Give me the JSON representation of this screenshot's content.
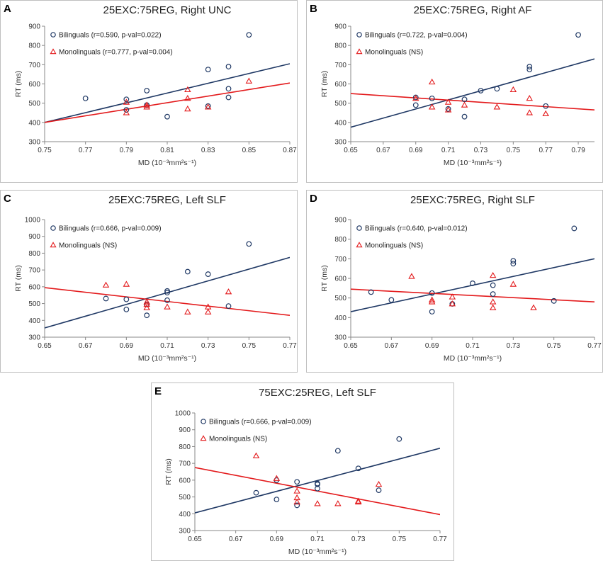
{
  "colors": {
    "bilingual": "#1f3864",
    "monolingual": "#e31a1c",
    "frame": "#bfbfbf"
  },
  "chart_data": [
    {
      "letter": "A",
      "type": "scatter",
      "title": "25EXC:75REG, Right UNC",
      "xlabel": "MD (10⁻³mm²s⁻¹)",
      "ylabel": "RT (ms)",
      "xlim": [
        0.75,
        0.87
      ],
      "ylim": [
        300,
        900
      ],
      "xticks": [
        "0.75",
        "0.77",
        "0.79",
        "0.81",
        "0.83",
        "0.85",
        "0.87"
      ],
      "yticks": [
        "300",
        "400",
        "500",
        "600",
        "700",
        "800",
        "900"
      ],
      "legend": {
        "bilingual": "Bilinguals (r=0.590, p-val=0.022)",
        "monolingual": "Monolinguals (r=0.777, p-val=0.004)"
      },
      "bilinguals": [
        [
          0.77,
          525
        ],
        [
          0.79,
          520
        ],
        [
          0.79,
          465
        ],
        [
          0.8,
          565
        ],
        [
          0.8,
          490
        ],
        [
          0.81,
          430
        ],
        [
          0.83,
          675
        ],
        [
          0.83,
          485
        ],
        [
          0.84,
          690
        ],
        [
          0.84,
          575
        ],
        [
          0.84,
          530
        ],
        [
          0.85,
          855
        ]
      ],
      "monolinguals": [
        [
          0.79,
          505
        ],
        [
          0.79,
          450
        ],
        [
          0.8,
          490
        ],
        [
          0.8,
          480
        ],
        [
          0.82,
          570
        ],
        [
          0.82,
          525
        ],
        [
          0.82,
          470
        ],
        [
          0.83,
          480
        ],
        [
          0.85,
          615
        ]
      ],
      "bil_fit": [
        [
          0.75,
          400
        ],
        [
          0.87,
          705
        ]
      ],
      "mono_fit": [
        [
          0.75,
          400
        ],
        [
          0.87,
          605
        ]
      ]
    },
    {
      "letter": "B",
      "type": "scatter",
      "title": "25EXC:75REG, Right AF",
      "xlabel": "MD (10⁻³mm²s⁻¹)",
      "ylabel": "RT (ms)",
      "xlim": [
        0.65,
        0.8
      ],
      "ylim": [
        300,
        900
      ],
      "xticks": [
        "0.65",
        "0.67",
        "0.69",
        "0.71",
        "0.73",
        "0.75",
        "0.77",
        "0.79"
      ],
      "yticks": [
        "300",
        "400",
        "500",
        "600",
        "700",
        "800",
        "900"
      ],
      "legend": {
        "bilingual": "Bilinguals (r=0.722, p-val=0.004)",
        "monolingual": "Monolinguals (NS)"
      },
      "bilinguals": [
        [
          0.69,
          530
        ],
        [
          0.69,
          490
        ],
        [
          0.7,
          525
        ],
        [
          0.71,
          470
        ],
        [
          0.72,
          520
        ],
        [
          0.72,
          430
        ],
        [
          0.73,
          565
        ],
        [
          0.74,
          575
        ],
        [
          0.76,
          690
        ],
        [
          0.76,
          675
        ],
        [
          0.77,
          485
        ],
        [
          0.79,
          855
        ]
      ],
      "monolinguals": [
        [
          0.69,
          525
        ],
        [
          0.7,
          610
        ],
        [
          0.7,
          480
        ],
        [
          0.71,
          505
        ],
        [
          0.71,
          465
        ],
        [
          0.72,
          490
        ],
        [
          0.74,
          480
        ],
        [
          0.75,
          570
        ],
        [
          0.76,
          525
        ],
        [
          0.76,
          450
        ],
        [
          0.77,
          445
        ]
      ],
      "bil_fit": [
        [
          0.65,
          375
        ],
        [
          0.8,
          730
        ]
      ],
      "mono_fit": [
        [
          0.65,
          550
        ],
        [
          0.8,
          465
        ]
      ]
    },
    {
      "letter": "C",
      "type": "scatter",
      "title": "25EXC:75REG, Left SLF",
      "xlabel": "MD (10⁻³mm²s⁻¹)",
      "ylabel": "RT (ms)",
      "xlim": [
        0.65,
        0.77
      ],
      "ylim": [
        300,
        1000
      ],
      "xticks": [
        "0.65",
        "0.67",
        "0.69",
        "0.71",
        "0.73",
        "0.75",
        "0.77"
      ],
      "yticks": [
        "300",
        "400",
        "500",
        "600",
        "700",
        "800",
        "900",
        "1000"
      ],
      "legend": {
        "bilingual": "Bilinguals (r=0.666, p-val=0.009)",
        "monolingual": "Monolinguals (NS)"
      },
      "bilinguals": [
        [
          0.68,
          530
        ],
        [
          0.69,
          525
        ],
        [
          0.69,
          465
        ],
        [
          0.7,
          495
        ],
        [
          0.7,
          430
        ],
        [
          0.71,
          575
        ],
        [
          0.71,
          565
        ],
        [
          0.71,
          520
        ],
        [
          0.72,
          690
        ],
        [
          0.73,
          675
        ],
        [
          0.74,
          485
        ],
        [
          0.75,
          855
        ]
      ],
      "monolinguals": [
        [
          0.68,
          610
        ],
        [
          0.69,
          615
        ],
        [
          0.7,
          510
        ],
        [
          0.7,
          495
        ],
        [
          0.7,
          475
        ],
        [
          0.71,
          480
        ],
        [
          0.72,
          450
        ],
        [
          0.73,
          480
        ],
        [
          0.73,
          450
        ],
        [
          0.74,
          570
        ]
      ],
      "bil_fit": [
        [
          0.65,
          355
        ],
        [
          0.77,
          775
        ]
      ],
      "mono_fit": [
        [
          0.65,
          595
        ],
        [
          0.77,
          430
        ]
      ]
    },
    {
      "letter": "D",
      "type": "scatter",
      "title": "25EXC:75REG, Right SLF",
      "xlabel": "MD (10⁻³mm²s⁻¹)",
      "ylabel": "RT (ms)",
      "xlim": [
        0.65,
        0.77
      ],
      "ylim": [
        300,
        900
      ],
      "xticks": [
        "0.65",
        "0.67",
        "0.69",
        "0.71",
        "0.73",
        "0.75",
        "0.77"
      ],
      "yticks": [
        "300",
        "400",
        "500",
        "600",
        "700",
        "800",
        "900"
      ],
      "legend": {
        "bilingual": "Bilinguals (r=0.640, p-val=0.012)",
        "monolingual": "Monolinguals (NS)"
      },
      "bilinguals": [
        [
          0.66,
          530
        ],
        [
          0.67,
          490
        ],
        [
          0.69,
          525
        ],
        [
          0.69,
          430
        ],
        [
          0.7,
          470
        ],
        [
          0.71,
          575
        ],
        [
          0.72,
          565
        ],
        [
          0.72,
          520
        ],
        [
          0.73,
          690
        ],
        [
          0.73,
          675
        ],
        [
          0.75,
          485
        ],
        [
          0.76,
          855
        ]
      ],
      "monolinguals": [
        [
          0.68,
          610
        ],
        [
          0.69,
          490
        ],
        [
          0.69,
          480
        ],
        [
          0.7,
          505
        ],
        [
          0.7,
          470
        ],
        [
          0.72,
          615
        ],
        [
          0.72,
          480
        ],
        [
          0.72,
          450
        ],
        [
          0.73,
          570
        ],
        [
          0.74,
          450
        ]
      ],
      "bil_fit": [
        [
          0.65,
          430
        ],
        [
          0.77,
          700
        ]
      ],
      "mono_fit": [
        [
          0.65,
          545
        ],
        [
          0.77,
          480
        ]
      ]
    },
    {
      "letter": "E",
      "type": "scatter",
      "title": "75EXC:25REG, Left SLF",
      "xlabel": "MD (10⁻³mm²s⁻¹)",
      "ylabel": "RT (ms)",
      "xlim": [
        0.65,
        0.77
      ],
      "ylim": [
        300,
        1000
      ],
      "xticks": [
        "0.65",
        "0.67",
        "0.69",
        "0.71",
        "0.73",
        "0.75",
        "0.77"
      ],
      "yticks": [
        "300",
        "400",
        "500",
        "600",
        "700",
        "800",
        "900",
        "1000"
      ],
      "legend": {
        "bilingual": "Bilinguals (r=0.666, p-val=0.009)",
        "monolingual": "Monolinguals (NS)"
      },
      "bilinguals": [
        [
          0.68,
          525
        ],
        [
          0.69,
          600
        ],
        [
          0.69,
          485
        ],
        [
          0.7,
          590
        ],
        [
          0.7,
          450
        ],
        [
          0.71,
          580
        ],
        [
          0.71,
          575
        ],
        [
          0.71,
          550
        ],
        [
          0.72,
          775
        ],
        [
          0.73,
          670
        ],
        [
          0.74,
          540
        ],
        [
          0.75,
          845
        ]
      ],
      "monolinguals": [
        [
          0.68,
          745
        ],
        [
          0.69,
          610
        ],
        [
          0.7,
          535
        ],
        [
          0.7,
          495
        ],
        [
          0.7,
          470
        ],
        [
          0.71,
          460
        ],
        [
          0.72,
          460
        ],
        [
          0.73,
          470
        ],
        [
          0.73,
          475
        ],
        [
          0.74,
          575
        ]
      ],
      "bil_fit": [
        [
          0.65,
          405
        ],
        [
          0.77,
          790
        ]
      ],
      "mono_fit": [
        [
          0.65,
          675
        ],
        [
          0.77,
          395
        ]
      ]
    }
  ]
}
